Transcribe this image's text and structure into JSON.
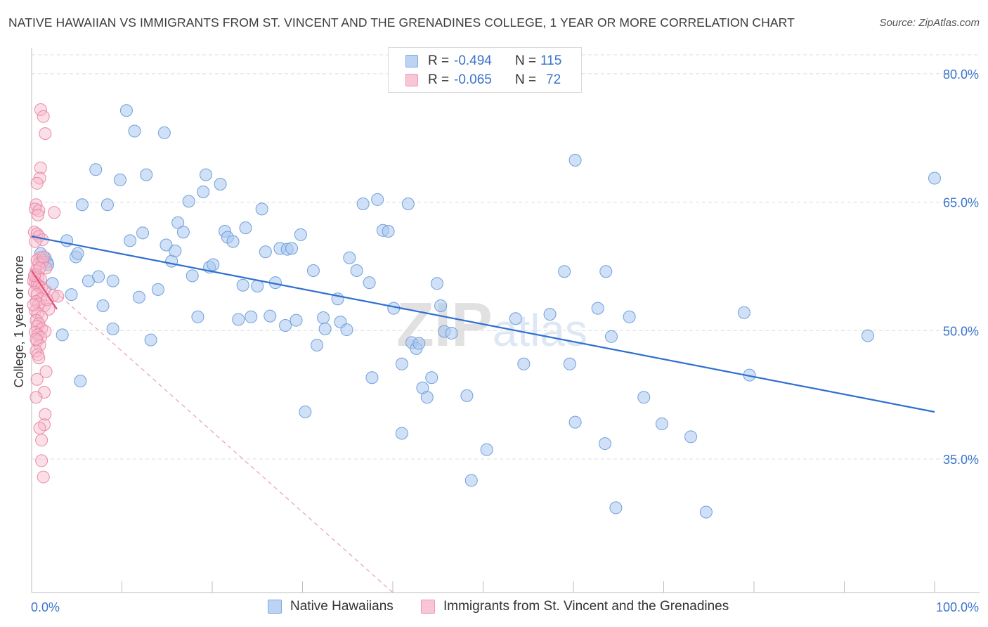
{
  "title": "NATIVE HAWAIIAN VS IMMIGRANTS FROM ST. VINCENT AND THE GRENADINES COLLEGE, 1 YEAR OR MORE CORRELATION CHART",
  "source": "Source: ZipAtlas.com",
  "watermark": "ZIPatlas",
  "legend": {
    "r_label": "R =",
    "n_label": "N =",
    "series1": {
      "r": "-0.494",
      "n": "115"
    },
    "series2": {
      "r": "-0.065",
      "n": "72"
    }
  },
  "colors": {
    "blue_fill": "#a9c8f0",
    "blue_stroke": "#6f9fdc",
    "blue_line": "#2f6fcf",
    "pink_fill": "#f6b7ca",
    "pink_stroke": "#e98aa8",
    "pink_line": "#e0507a",
    "tick_label": "#3b74cc"
  },
  "chart_data": {
    "type": "scatter",
    "title": "NATIVE HAWAIIAN VS IMMIGRANTS FROM ST. VINCENT AND THE GRENADINES COLLEGE, 1 YEAR OR MORE CORRELATION CHART",
    "xlabel": "",
    "ylabel": "College, 1 year or more",
    "xlim": [
      0,
      100
    ],
    "ylim": [
      19.4,
      82.7
    ],
    "x_tick_labels": [
      "0.0%",
      "100.0%"
    ],
    "y_ticks": [
      35,
      50,
      65,
      80
    ],
    "y_tick_labels": [
      "35.0%",
      "50.0%",
      "65.0%",
      "80.0%"
    ],
    "grid": "horizontal dashed",
    "legend_placement": "bottom",
    "series": [
      {
        "name": "Native Hawaiians",
        "color": "blue",
        "trend": {
          "x": [
            0,
            100
          ],
          "y": [
            61.0,
            40.5
          ]
        },
        "points": [
          [
            1.0,
            59.0
          ],
          [
            1.3,
            58.3
          ],
          [
            1.5,
            58.5
          ],
          [
            1.7,
            58.0
          ],
          [
            1.8,
            57.7
          ],
          [
            2.3,
            55.5
          ],
          [
            3.4,
            49.5
          ],
          [
            3.9,
            60.5
          ],
          [
            4.4,
            54.2
          ],
          [
            4.9,
            58.6
          ],
          [
            5.1,
            59.0
          ],
          [
            5.6,
            64.7
          ],
          [
            5.4,
            44.1
          ],
          [
            6.3,
            55.8
          ],
          [
            7.4,
            56.3
          ],
          [
            7.1,
            68.8
          ],
          [
            7.9,
            52.9
          ],
          [
            8.4,
            64.7
          ],
          [
            9.0,
            50.2
          ],
          [
            9.0,
            55.8
          ],
          [
            9.8,
            67.6
          ],
          [
            10.5,
            75.7
          ],
          [
            10.9,
            60.5
          ],
          [
            11.4,
            73.3
          ],
          [
            11.9,
            53.9
          ],
          [
            12.3,
            61.4
          ],
          [
            12.7,
            68.2
          ],
          [
            13.2,
            48.9
          ],
          [
            14.0,
            54.8
          ],
          [
            14.7,
            73.1
          ],
          [
            14.9,
            60.0
          ],
          [
            15.5,
            58.1
          ],
          [
            15.9,
            59.3
          ],
          [
            16.2,
            62.6
          ],
          [
            16.8,
            61.5
          ],
          [
            17.4,
            65.1
          ],
          [
            17.8,
            56.4
          ],
          [
            18.4,
            51.6
          ],
          [
            19.0,
            66.2
          ],
          [
            19.3,
            68.2
          ],
          [
            19.7,
            57.4
          ],
          [
            20.1,
            57.7
          ],
          [
            20.9,
            67.1
          ],
          [
            21.4,
            61.6
          ],
          [
            21.7,
            60.9
          ],
          [
            22.3,
            60.4
          ],
          [
            22.9,
            51.3
          ],
          [
            23.4,
            55.3
          ],
          [
            23.7,
            62.0
          ],
          [
            24.3,
            51.6
          ],
          [
            25.0,
            55.2
          ],
          [
            25.5,
            64.2
          ],
          [
            25.9,
            59.2
          ],
          [
            26.4,
            51.7
          ],
          [
            27.0,
            55.6
          ],
          [
            27.5,
            59.6
          ],
          [
            28.1,
            50.6
          ],
          [
            28.3,
            59.5
          ],
          [
            28.8,
            59.6
          ],
          [
            29.3,
            51.2
          ],
          [
            29.8,
            61.2
          ],
          [
            30.3,
            40.5
          ],
          [
            31.2,
            57.0
          ],
          [
            31.6,
            48.3
          ],
          [
            32.3,
            51.5
          ],
          [
            32.5,
            50.2
          ],
          [
            33.9,
            53.7
          ],
          [
            34.2,
            51.0
          ],
          [
            34.9,
            50.1
          ],
          [
            35.2,
            58.5
          ],
          [
            36.0,
            57.0
          ],
          [
            36.7,
            64.8
          ],
          [
            37.4,
            55.6
          ],
          [
            37.7,
            44.5
          ],
          [
            38.3,
            65.3
          ],
          [
            38.9,
            61.7
          ],
          [
            39.5,
            61.6
          ],
          [
            40.1,
            52.6
          ],
          [
            41.0,
            46.1
          ],
          [
            41.0,
            38.0
          ],
          [
            41.7,
            64.8
          ],
          [
            42.1,
            48.6
          ],
          [
            42.6,
            47.9
          ],
          [
            42.9,
            48.5
          ],
          [
            43.3,
            43.3
          ],
          [
            43.8,
            42.2
          ],
          [
            44.3,
            44.5
          ],
          [
            44.9,
            55.5
          ],
          [
            45.3,
            52.9
          ],
          [
            45.7,
            49.9
          ],
          [
            46.5,
            49.7
          ],
          [
            48.2,
            42.4
          ],
          [
            48.7,
            32.5
          ],
          [
            50.4,
            36.1
          ],
          [
            53.6,
            51.4
          ],
          [
            54.5,
            46.1
          ],
          [
            57.4,
            51.9
          ],
          [
            59.0,
            56.9
          ],
          [
            59.6,
            46.1
          ],
          [
            60.2,
            69.9
          ],
          [
            60.2,
            39.3
          ],
          [
            62.7,
            52.6
          ],
          [
            63.5,
            36.8
          ],
          [
            63.6,
            56.9
          ],
          [
            64.2,
            49.3
          ],
          [
            64.7,
            29.3
          ],
          [
            66.2,
            51.6
          ],
          [
            67.8,
            42.2
          ],
          [
            69.8,
            39.1
          ],
          [
            73.0,
            37.6
          ],
          [
            74.7,
            28.8
          ],
          [
            78.9,
            52.1
          ],
          [
            79.5,
            44.8
          ],
          [
            92.6,
            49.4
          ],
          [
            100.0,
            67.8
          ]
        ]
      },
      {
        "name": "Immigrants from St. Vincent and the Grenadines",
        "color": "pink",
        "trend": {
          "x": [
            0,
            2.8
          ],
          "y": [
            57.0,
            52.5
          ]
        },
        "trend_extension": {
          "x": [
            0,
            40.0
          ],
          "y": [
            57.0,
            19.4
          ]
        },
        "points": [
          [
            1.0,
            75.8
          ],
          [
            1.3,
            75.0
          ],
          [
            1.5,
            73.0
          ],
          [
            1.0,
            69.0
          ],
          [
            0.9,
            67.8
          ],
          [
            0.6,
            67.2
          ],
          [
            0.5,
            64.7
          ],
          [
            0.4,
            64.2
          ],
          [
            0.8,
            64.0
          ],
          [
            0.7,
            63.5
          ],
          [
            2.5,
            63.8
          ],
          [
            0.3,
            61.5
          ],
          [
            0.6,
            61.3
          ],
          [
            0.8,
            61.0
          ],
          [
            1.2,
            60.6
          ],
          [
            0.4,
            60.4
          ],
          [
            0.9,
            58.5
          ],
          [
            0.6,
            58.2
          ],
          [
            1.2,
            58.0
          ],
          [
            0.8,
            57.8
          ],
          [
            1.6,
            57.3
          ],
          [
            0.5,
            57.0
          ],
          [
            0.4,
            56.6
          ],
          [
            0.7,
            56.2
          ],
          [
            1.0,
            56.0
          ],
          [
            0.2,
            55.8
          ],
          [
            0.4,
            55.6
          ],
          [
            0.6,
            55.4
          ],
          [
            0.8,
            55.2
          ],
          [
            1.1,
            55.0
          ],
          [
            1.4,
            54.7
          ],
          [
            0.3,
            54.5
          ],
          [
            0.6,
            54.2
          ],
          [
            2.4,
            54.1
          ],
          [
            2.9,
            54.0
          ],
          [
            1.0,
            53.7
          ],
          [
            0.5,
            53.4
          ],
          [
            0.8,
            53.1
          ],
          [
            1.4,
            52.9
          ],
          [
            1.9,
            52.5
          ],
          [
            0.4,
            52.3
          ],
          [
            0.7,
            52.0
          ],
          [
            1.1,
            51.6
          ],
          [
            0.5,
            51.2
          ],
          [
            0.8,
            50.8
          ],
          [
            0.6,
            50.5
          ],
          [
            1.1,
            50.2
          ],
          [
            1.5,
            49.9
          ],
          [
            0.4,
            49.8
          ],
          [
            0.7,
            49.5
          ],
          [
            1.0,
            49.2
          ],
          [
            0.6,
            48.8
          ],
          [
            0.9,
            48.3
          ],
          [
            0.5,
            47.6
          ],
          [
            0.7,
            47.2
          ],
          [
            0.8,
            46.8
          ],
          [
            1.6,
            45.2
          ],
          [
            0.6,
            44.3
          ],
          [
            1.4,
            42.8
          ],
          [
            0.5,
            42.2
          ],
          [
            1.5,
            40.2
          ],
          [
            1.4,
            39.0
          ],
          [
            0.9,
            38.6
          ],
          [
            1.1,
            37.2
          ],
          [
            1.1,
            34.8
          ],
          [
            1.3,
            32.9
          ],
          [
            0.3,
            56.4
          ],
          [
            0.9,
            57.3
          ],
          [
            1.3,
            58.6
          ],
          [
            0.2,
            53.0
          ],
          [
            0.5,
            49.0
          ],
          [
            1.7,
            53.6
          ]
        ]
      }
    ]
  },
  "bottom_legend": {
    "series1": "Native Hawaiians",
    "series2": "Immigrants from St. Vincent and the Grenadines"
  }
}
